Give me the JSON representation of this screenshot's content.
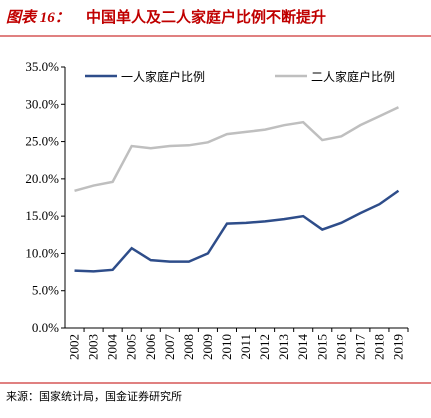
{
  "title_prefix": "图表 16：",
  "title": "中国单人及二人家庭户比例不断提升",
  "source": "来源：国家统计局，国金证券研究所",
  "chart_data": {
    "type": "line",
    "categories": [
      "2002",
      "2003",
      "2004",
      "2005",
      "2006",
      "2007",
      "2008",
      "2009",
      "2010",
      "2011",
      "2012",
      "2013",
      "2014",
      "2015",
      "2016",
      "2017",
      "2018",
      "2019"
    ],
    "series": [
      {
        "name": "一人家庭户比例",
        "color": "#2e4d8a",
        "values": [
          7.7,
          7.6,
          7.8,
          10.7,
          9.1,
          8.9,
          8.9,
          10.0,
          14.0,
          14.1,
          14.3,
          14.6,
          15.0,
          13.2,
          14.1,
          15.4,
          16.6,
          18.4
        ]
      },
      {
        "name": "二人家庭户比例",
        "color": "#bfbfbf",
        "values": [
          18.4,
          19.1,
          19.6,
          24.4,
          24.1,
          24.4,
          24.5,
          24.9,
          26.0,
          26.3,
          26.6,
          27.2,
          27.6,
          25.2,
          25.7,
          27.2,
          28.4,
          29.6
        ]
      }
    ],
    "ylim": [
      0,
      35
    ],
    "yticks": [
      {
        "value": 0,
        "label": "0.0%"
      },
      {
        "value": 5,
        "label": "5.0%"
      },
      {
        "value": 10,
        "label": "10.0%"
      },
      {
        "value": 15,
        "label": "15.0%"
      },
      {
        "value": 20,
        "label": "20.0%"
      },
      {
        "value": 25,
        "label": "25.0%"
      },
      {
        "value": 30,
        "label": "30.0%"
      },
      {
        "value": 35,
        "label": "35.0%"
      }
    ],
    "legend": "top"
  }
}
